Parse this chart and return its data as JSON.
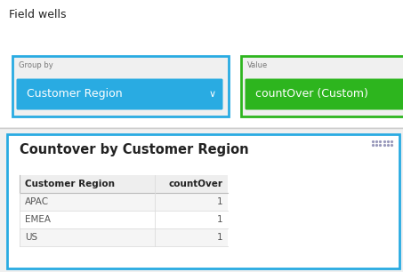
{
  "field_wells_label": "Field wells",
  "group_by_label": "Group by",
  "group_by_value": "Customer Region",
  "value_label": "Value",
  "value_value": "countOver (Custom)",
  "chart_title": "Countover by Customer Region",
  "col1_header": "Customer Region",
  "col2_header": "countOver",
  "rows": [
    [
      "APAC",
      "1"
    ],
    [
      "EMEA",
      "1"
    ],
    [
      "US",
      "1"
    ]
  ],
  "bg_page": "#f0f0f0",
  "bg_white": "#ffffff",
  "blue_border": "#29abe2",
  "blue_fill": "#29abe2",
  "green_border": "#2db51e",
  "green_fill": "#2db51e",
  "group_by_box_border": "#29abe2",
  "group_by_box_bg": "#f0f0f0",
  "value_box_border": "#2db51e",
  "value_box_bg": "#f0f0f0",
  "table_panel_bg": "#ffffff",
  "table_panel_border": "#29abe2",
  "header_row_bg": "#eeeeee",
  "alt_row_bg": "#f5f5f5",
  "row_bg": "#ffffff",
  "text_dark": "#222222",
  "text_white": "#ffffff",
  "text_gray": "#555555",
  "text_label_gray": "#777777",
  "dots_color": "#9999bb",
  "sep_line_color": "#cccccc",
  "table_line_color": "#dddddd",
  "header_line_color": "#bbbbbb"
}
